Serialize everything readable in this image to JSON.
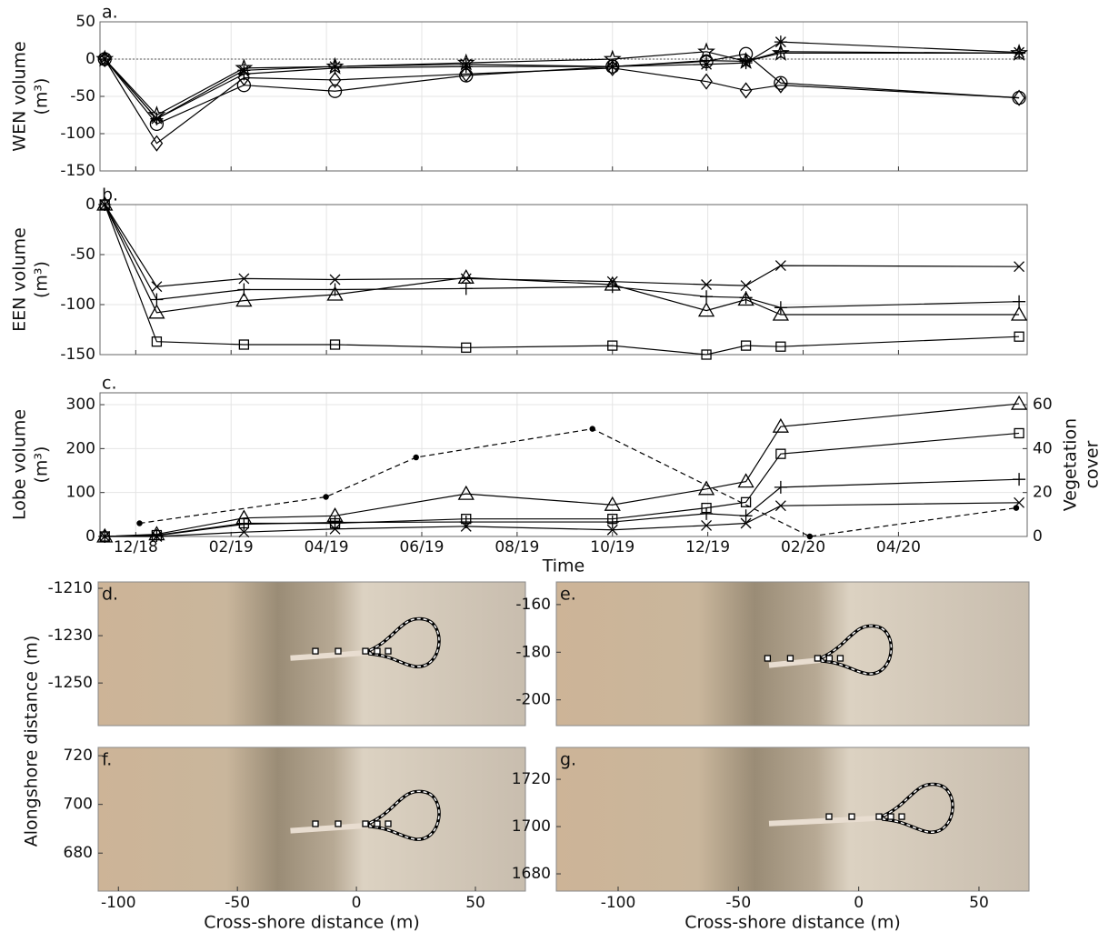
{
  "figure_ylabel": "Alongshore distance (m)",
  "chart_data": [
    {
      "type": "line",
      "panel": "a.",
      "ylabel": [
        "WEN volume",
        "(m³)"
      ],
      "x": [
        11.35,
        12.44,
        14.27,
        16.18,
        18.93,
        22.0,
        23.97,
        24.8,
        25.53,
        30.53
      ],
      "xlim": [
        11.25,
        30.7
      ],
      "xticks": [
        12,
        14,
        16,
        18,
        20,
        22,
        24,
        26,
        28
      ],
      "show_xtick_labels": false,
      "ylim": [
        -150,
        50
      ],
      "yticks": [
        -150,
        -100,
        -50,
        0,
        50
      ],
      "grid": true,
      "zero_line": true,
      "series": [
        {
          "marker": "pentagram",
          "color": "#000000",
          "values": [
            0,
            -75,
            -12,
            -10,
            -5,
            0,
            10,
            -3,
            8,
            8
          ]
        },
        {
          "marker": "circle",
          "color": "#000000",
          "values": [
            0,
            -87,
            -35,
            -43,
            -22,
            -10,
            -3,
            7,
            -32,
            -52
          ]
        },
        {
          "marker": "asterisk",
          "color": "#000000",
          "values": [
            0,
            -80,
            -15,
            -10,
            -7,
            -10,
            -7,
            -5,
            23,
            9
          ]
        },
        {
          "marker": "diamond",
          "color": "#000000",
          "values": [
            0,
            -113,
            -25,
            -28,
            -20,
            -12,
            -30,
            -42,
            -35,
            -52
          ]
        },
        {
          "marker": "plus",
          "color": "#000000",
          "values": [
            0,
            -80,
            -20,
            -12,
            -10,
            -10,
            -2,
            -3,
            10,
            8
          ]
        }
      ]
    },
    {
      "type": "line",
      "panel": "b.",
      "ylabel": [
        "EEN volume",
        "(m³)"
      ],
      "x": [
        11.35,
        12.44,
        14.27,
        16.18,
        18.93,
        22.0,
        23.97,
        24.8,
        25.53,
        30.53
      ],
      "xlim": [
        11.25,
        30.7
      ],
      "xticks": [
        12,
        14,
        16,
        18,
        20,
        22,
        24,
        26,
        28
      ],
      "show_xtick_labels": false,
      "ylim": [
        -150,
        0
      ],
      "yticks": [
        -150,
        -100,
        -50,
        0
      ],
      "grid": true,
      "series": [
        {
          "marker": "x",
          "color": "#000000",
          "values": [
            0,
            -82,
            -74,
            -75,
            -74,
            -77,
            -80,
            -81,
            -61,
            -62
          ]
        },
        {
          "marker": "plus",
          "color": "#000000",
          "values": [
            0,
            -95,
            -85,
            -85,
            -84,
            -82,
            -92,
            -93,
            -103,
            -97
          ]
        },
        {
          "marker": "triangle",
          "color": "#000000",
          "values": [
            0,
            -108,
            -96,
            -90,
            -73,
            -80,
            -106,
            -95,
            -110,
            -110
          ]
        },
        {
          "marker": "square",
          "color": "#000000",
          "values": [
            0,
            -137,
            -140,
            -140,
            -143,
            -141,
            -150,
            -141,
            -142,
            -132
          ]
        }
      ]
    },
    {
      "type": "line",
      "panel": "c.",
      "ylabel": [
        "Lobe volume",
        "(m³)"
      ],
      "y2label": [
        "Vegetation",
        "cover"
      ],
      "xlabel": "Time",
      "x": [
        11.35,
        12.44,
        14.27,
        16.18,
        18.93,
        22.0,
        23.97,
        24.8,
        25.53,
        30.53
      ],
      "xlim": [
        11.25,
        30.7
      ],
      "xticks": [
        {
          "value": 12,
          "label": "12/18"
        },
        {
          "value": 14,
          "label": "02/19"
        },
        {
          "value": 16,
          "label": "04/19"
        },
        {
          "value": 18,
          "label": "06/19"
        },
        {
          "value": 20,
          "label": "08/19"
        },
        {
          "value": 22,
          "label": "10/19"
        },
        {
          "value": 24,
          "label": "12/19"
        },
        {
          "value": 26,
          "label": "02/20"
        },
        {
          "value": 28,
          "label": "04/20"
        }
      ],
      "show_xtick_labels": true,
      "ylim": [
        0,
        327
      ],
      "yticks": [
        0,
        100,
        200,
        300
      ],
      "y2lim": [
        0,
        65.4
      ],
      "y2ticks": [
        0,
        20,
        40,
        60
      ],
      "grid": true,
      "series": [
        {
          "marker": "triangle",
          "color": "#000000",
          "values": [
            0,
            5,
            42,
            47,
            97,
            72,
            108,
            125,
            250,
            302
          ]
        },
        {
          "marker": "square",
          "color": "#000000",
          "values": [
            0,
            3,
            30,
            30,
            40,
            40,
            65,
            78,
            188,
            235
          ]
        },
        {
          "marker": "plus",
          "color": "#000000",
          "values": [
            0,
            2,
            28,
            32,
            33,
            33,
            52,
            47,
            112,
            130
          ]
        },
        {
          "marker": "x",
          "color": "#000000",
          "values": [
            0,
            0,
            10,
            17,
            23,
            15,
            25,
            30,
            70,
            77
          ]
        },
        {
          "marker": "dot",
          "color": "#000000",
          "dash": true,
          "axis": "y2",
          "x": [
            12.08,
            15.99,
            17.88,
            21.58,
            26.14,
            30.47
          ],
          "values": [
            6,
            18,
            36,
            49,
            0,
            13
          ]
        }
      ]
    },
    {
      "type": "image",
      "panel": "d.",
      "ylim": [
        -1268,
        -1207.3
      ],
      "yticks": [
        -1250,
        -1230,
        -1210
      ]
    },
    {
      "type": "image",
      "panel": "e.",
      "ylim": [
        -210.8,
        -150.5
      ],
      "yticks": [
        -200,
        -180,
        -160
      ]
    },
    {
      "type": "image",
      "panel": "f.",
      "xlabel": "Cross-shore distance (m)",
      "xlim": [
        -108.5,
        71
      ],
      "xticks": [
        -100,
        -50,
        0,
        50
      ],
      "ylim": [
        664.4,
        723.4
      ],
      "yticks": [
        680,
        700,
        720
      ]
    },
    {
      "type": "image",
      "panel": "g.",
      "xlabel": "Cross-shore distance (m)",
      "xlim": [
        -125.7,
        70.8
      ],
      "xticks": [
        -100,
        -50,
        0,
        50
      ],
      "ylim": [
        1672.7,
        1733.5
      ],
      "yticks": [
        1680,
        1700,
        1720
      ]
    }
  ]
}
